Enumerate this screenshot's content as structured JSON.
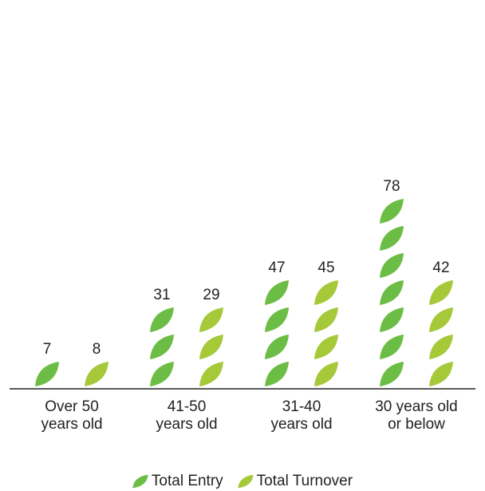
{
  "chart_data": {
    "type": "bar",
    "title": "",
    "xlabel": "",
    "ylabel": "",
    "categories": [
      [
        "Over 50",
        "years old"
      ],
      [
        "41-50",
        "years old"
      ],
      [
        "31-40",
        "years old"
      ],
      [
        "30 years old",
        "or below"
      ]
    ],
    "series": [
      {
        "name": "Total Entry",
        "color": "#6cbd45",
        "values": [
          7,
          31,
          47,
          78
        ]
      },
      {
        "name": "Total Turnover",
        "color": "#a6c93a",
        "values": [
          8,
          29,
          45,
          42
        ]
      }
    ],
    "ylim": [
      0,
      80
    ],
    "grid": false,
    "legend_position": "bottom-center",
    "mark_style": "stacked leaf icons"
  }
}
